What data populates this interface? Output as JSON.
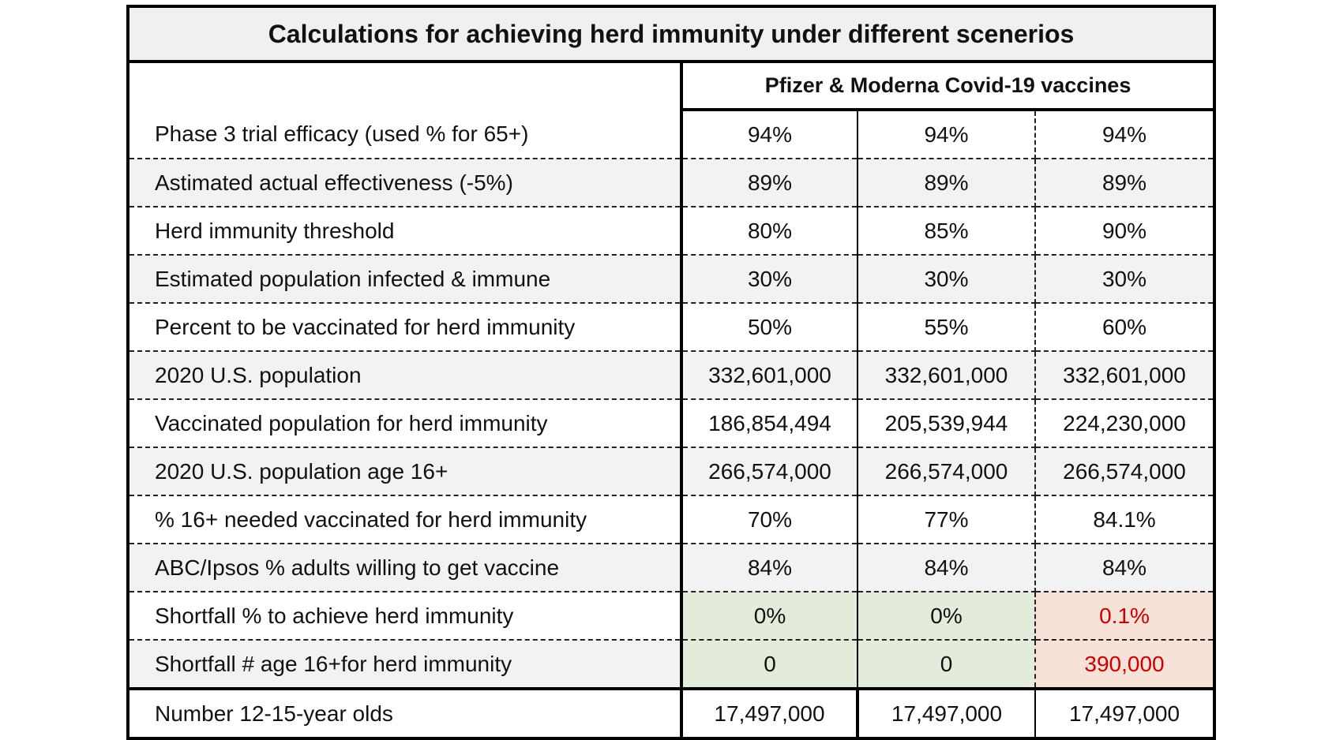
{
  "title": "Calculations for achieving herd immunity under different scenerios",
  "header": "Pfizer & Moderna Covid-19 vaccines",
  "colors": {
    "title_bg": "#f0f0f0",
    "row_shade": "#f2f2f2",
    "ok_bg": "#e3ecda",
    "bad_bg": "#f8e1d6",
    "bad_text": "#cc0000"
  },
  "rows": [
    {
      "label": "Phase 3 trial efficacy (used % for 65+)",
      "values": [
        "94%",
        "94%",
        "94%"
      ]
    },
    {
      "label": "Astimated actual effectiveness (-5%)",
      "values": [
        "89%",
        "89%",
        "89%"
      ]
    },
    {
      "label": "Herd immunity threshold",
      "values": [
        "80%",
        "85%",
        "90%"
      ]
    },
    {
      "label": "Estimated population infected & immune",
      "values": [
        "30%",
        "30%",
        "30%"
      ]
    },
    {
      "label": "Percent to be vaccinated for herd immunity",
      "values": [
        "50%",
        "55%",
        "60%"
      ]
    },
    {
      "label": "2020 U.S. population",
      "values": [
        "332,601,000",
        "332,601,000",
        "332,601,000"
      ]
    },
    {
      "label": "Vaccinated population for herd immunity",
      "values": [
        "186,854,494",
        "205,539,944",
        "224,230,000"
      ]
    },
    {
      "label": "2020 U.S. population age 16+",
      "values": [
        "266,574,000",
        "266,574,000",
        "266,574,000"
      ]
    },
    {
      "label": "% 16+ needed vaccinated for herd immunity",
      "values": [
        "70%",
        "77%",
        "84.1%"
      ]
    },
    {
      "label": "ABC/Ipsos % adults willing to get vaccine",
      "values": [
        "84%",
        "84%",
        "84%"
      ]
    },
    {
      "label": "Shortfall % to achieve herd immunity",
      "values": [
        "0%",
        "0%",
        "0.1%"
      ]
    },
    {
      "label": "Shortfall # age 16+for herd immunity",
      "values": [
        "0",
        "0",
        "390,000"
      ]
    },
    {
      "label": "Number 12-15-year olds",
      "values": [
        "17,497,000",
        "17,497,000",
        "17,497,000"
      ]
    }
  ]
}
